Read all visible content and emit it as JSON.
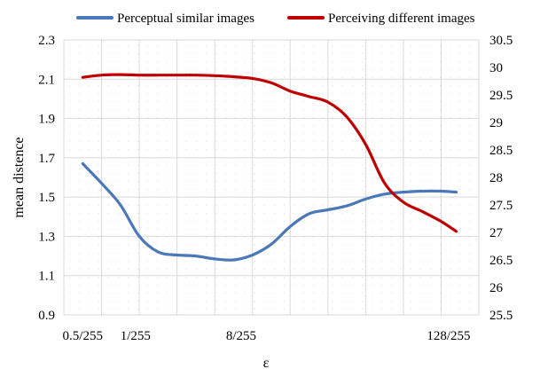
{
  "chart_data": {
    "type": "line",
    "xlabel": "ε",
    "ylabel_left": "mean distence",
    "ylabel_right": "",
    "y_left_lim": [
      0.9,
      2.3
    ],
    "y_right_lim": [
      25.5,
      30.5
    ],
    "y_left_ticks": [
      "0.9",
      "1.1",
      "1.3",
      "1.5",
      "1.7",
      "1.9",
      "2.1",
      "2.3"
    ],
    "y_right_ticks": [
      "25.5",
      "26",
      "26.5",
      "27",
      "27.5",
      "28",
      "28.5",
      "29",
      "29.5",
      "30",
      "30.5"
    ],
    "x_ticks": [
      "0.5/255",
      "1/255",
      "8/255",
      "128/255"
    ],
    "x_tick_positions": [
      0.5,
      1.9,
      4.7,
      10.2
    ],
    "x_range": [
      0,
      11
    ],
    "legend_position": "top",
    "grid": true,
    "series": [
      {
        "name": "Perceptual similar images",
        "axis": "left",
        "color": "#4a78b8",
        "x": [
          0.5,
          1.0,
          1.5,
          2.0,
          2.5,
          3.0,
          3.5,
          4.0,
          4.5,
          5.0,
          5.5,
          6.0,
          6.5,
          7.0,
          7.5,
          8.0,
          8.5,
          9.0,
          9.5,
          10.0,
          10.4
        ],
        "values": [
          1.67,
          1.57,
          1.46,
          1.3,
          1.22,
          1.205,
          1.2,
          1.185,
          1.18,
          1.205,
          1.26,
          1.35,
          1.415,
          1.435,
          1.455,
          1.49,
          1.515,
          1.525,
          1.53,
          1.53,
          1.525
        ]
      },
      {
        "name": "Perceiving different images",
        "axis": "right",
        "color": "#c00000",
        "x": [
          0.5,
          1.0,
          1.5,
          2.0,
          2.5,
          3.0,
          3.5,
          4.0,
          4.5,
          5.0,
          5.5,
          6.0,
          6.5,
          7.0,
          7.5,
          8.0,
          8.5,
          9.0,
          9.5,
          10.0,
          10.4
        ],
        "values": [
          29.82,
          29.86,
          29.87,
          29.86,
          29.86,
          29.86,
          29.86,
          29.85,
          29.83,
          29.8,
          29.72,
          29.57,
          29.47,
          29.37,
          29.1,
          28.6,
          27.9,
          27.55,
          27.38,
          27.2,
          27.02
        ]
      }
    ]
  }
}
